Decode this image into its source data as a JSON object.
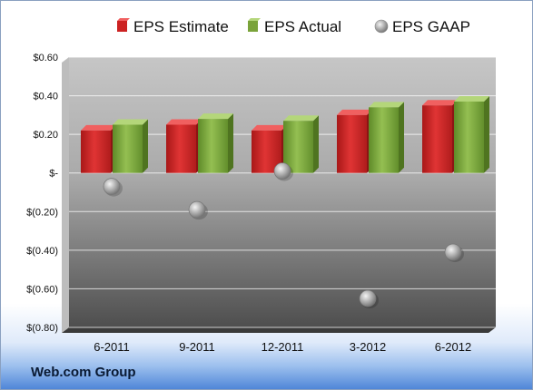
{
  "chart_data": {
    "type": "bar",
    "title": "",
    "xlabel": "",
    "ylabel": "",
    "categories": [
      "6-2011",
      "9-2011",
      "12-2011",
      "3-2012",
      "6-2012"
    ],
    "series": [
      {
        "name": "EPS Estimate",
        "kind": "bar",
        "color": "#cc2222",
        "values": [
          0.22,
          0.25,
          0.22,
          0.3,
          0.35
        ]
      },
      {
        "name": "EPS Actual",
        "kind": "bar",
        "color": "#7aa33a",
        "values": [
          0.25,
          0.28,
          0.27,
          0.34,
          0.37
        ]
      },
      {
        "name": "EPS GAAP",
        "kind": "scatter",
        "color": "#a8a8a8",
        "values": [
          -0.07,
          -0.19,
          0.01,
          -0.65,
          -0.41
        ]
      }
    ],
    "ylim": [
      -0.8,
      0.6
    ],
    "yticks": [
      0.6,
      0.4,
      0.2,
      0,
      -0.2,
      -0.4,
      -0.6,
      -0.8
    ],
    "ytick_labels": [
      "$0.60",
      "$0.40",
      "$0.20",
      "$-",
      "$(0.20)",
      "$(0.40)",
      "$(0.60)",
      "$(0.80)"
    ],
    "grid": true,
    "legend_position": "top"
  },
  "footer": {
    "company": "Web.com Group"
  }
}
